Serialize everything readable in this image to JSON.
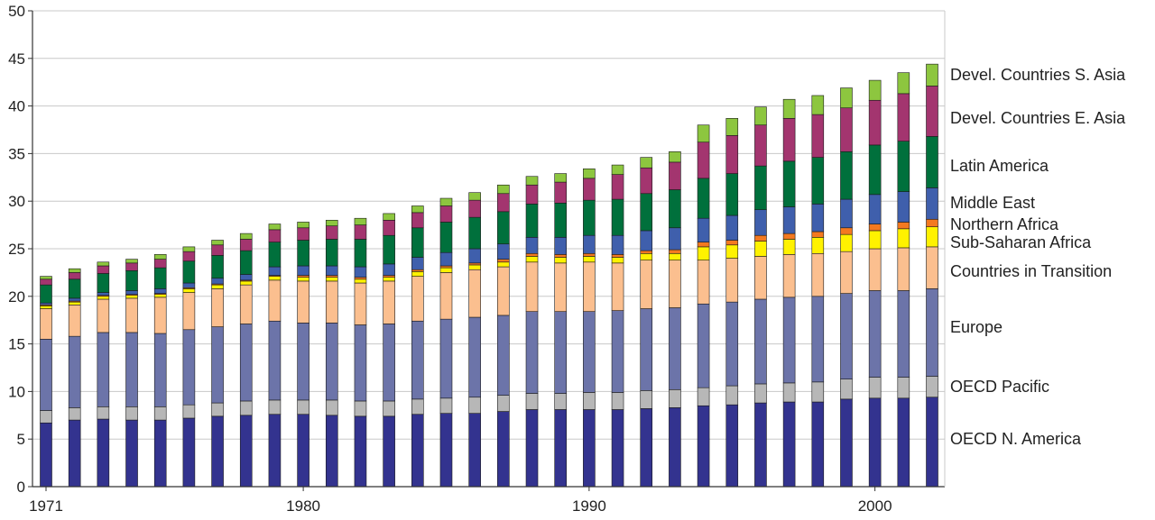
{
  "chart_data": {
    "type": "bar",
    "stacked": true,
    "title": "",
    "xlabel": "",
    "ylabel": "",
    "ylim": [
      0,
      50
    ],
    "yticks": [
      0,
      5,
      10,
      15,
      20,
      25,
      30,
      35,
      40,
      45,
      50
    ],
    "x_tick_labels": [
      "1971",
      "1980",
      "1990",
      "2000"
    ],
    "grid": true,
    "legend_position": "right",
    "categories": [
      1971,
      1972,
      1973,
      1974,
      1975,
      1976,
      1977,
      1978,
      1979,
      1980,
      1981,
      1982,
      1983,
      1984,
      1985,
      1986,
      1987,
      1988,
      1989,
      1990,
      1991,
      1992,
      1993,
      1994,
      1995,
      1996,
      1997,
      1998,
      1999,
      2000,
      2001,
      2002
    ],
    "series": [
      {
        "name": "OECD N. America",
        "color": "#33338f",
        "values": [
          6.7,
          7.0,
          7.1,
          7.0,
          7.0,
          7.2,
          7.4,
          7.5,
          7.6,
          7.6,
          7.5,
          7.4,
          7.4,
          7.6,
          7.7,
          7.7,
          7.9,
          8.1,
          8.1,
          8.1,
          8.1,
          8.2,
          8.3,
          8.5,
          8.6,
          8.8,
          8.9,
          8.9,
          9.2,
          9.3,
          9.3,
          9.4
        ]
      },
      {
        "name": "OECD Pacific",
        "color": "#b7b7b7",
        "values": [
          1.3,
          1.3,
          1.3,
          1.4,
          1.4,
          1.4,
          1.4,
          1.5,
          1.5,
          1.5,
          1.6,
          1.6,
          1.6,
          1.6,
          1.6,
          1.7,
          1.7,
          1.7,
          1.7,
          1.8,
          1.8,
          1.9,
          1.9,
          1.9,
          2.0,
          2.0,
          2.0,
          2.1,
          2.1,
          2.2,
          2.2,
          2.2
        ]
      },
      {
        "name": "Europe",
        "color": "#6c74a9",
        "values": [
          7.5,
          7.5,
          7.8,
          7.8,
          7.7,
          7.9,
          8.0,
          8.1,
          8.3,
          8.1,
          8.1,
          8.0,
          8.1,
          8.2,
          8.3,
          8.4,
          8.4,
          8.6,
          8.6,
          8.5,
          8.6,
          8.6,
          8.6,
          8.8,
          8.8,
          8.9,
          9.0,
          9.0,
          9.0,
          9.1,
          9.1,
          9.2
        ]
      },
      {
        "name": "Countries in Transition",
        "color": "#fbbf8f",
        "values": [
          3.2,
          3.3,
          3.5,
          3.6,
          3.8,
          3.9,
          4.0,
          4.1,
          4.3,
          4.4,
          4.4,
          4.4,
          4.5,
          4.7,
          4.9,
          5.0,
          5.1,
          5.2,
          5.1,
          5.2,
          5.0,
          5.1,
          5.0,
          4.6,
          4.6,
          4.5,
          4.5,
          4.5,
          4.4,
          4.4,
          4.5,
          4.4
        ]
      },
      {
        "name": "Sub-Saharan Africa",
        "color": "#fff200",
        "values": [
          0.3,
          0.3,
          0.3,
          0.3,
          0.3,
          0.4,
          0.4,
          0.4,
          0.4,
          0.4,
          0.4,
          0.4,
          0.4,
          0.5,
          0.5,
          0.5,
          0.5,
          0.6,
          0.6,
          0.6,
          0.6,
          0.7,
          0.7,
          1.4,
          1.4,
          1.6,
          1.6,
          1.7,
          1.8,
          1.9,
          2.0,
          2.1
        ]
      },
      {
        "name": "Northern Africa",
        "color": "#f47920",
        "values": [
          0.1,
          0.1,
          0.1,
          0.1,
          0.1,
          0.1,
          0.1,
          0.1,
          0.1,
          0.2,
          0.2,
          0.2,
          0.2,
          0.2,
          0.2,
          0.2,
          0.3,
          0.3,
          0.3,
          0.3,
          0.3,
          0.3,
          0.4,
          0.5,
          0.5,
          0.6,
          0.6,
          0.6,
          0.7,
          0.7,
          0.7,
          0.8
        ]
      },
      {
        "name": "Middle East",
        "color": "#3f5fac",
        "values": [
          0.2,
          0.3,
          0.3,
          0.4,
          0.5,
          0.5,
          0.6,
          0.6,
          0.9,
          1.0,
          1.0,
          1.1,
          1.2,
          1.3,
          1.4,
          1.5,
          1.6,
          1.7,
          1.8,
          1.9,
          2.0,
          2.1,
          2.3,
          2.5,
          2.6,
          2.7,
          2.8,
          2.9,
          3.0,
          3.1,
          3.2,
          3.3
        ]
      },
      {
        "name": "Latin America",
        "color": "#00703c",
        "values": [
          1.9,
          2.0,
          2.0,
          2.1,
          2.2,
          2.3,
          2.4,
          2.5,
          2.6,
          2.7,
          2.8,
          2.9,
          3.0,
          3.1,
          3.2,
          3.3,
          3.4,
          3.5,
          3.6,
          3.7,
          3.8,
          3.9,
          4.0,
          4.2,
          4.4,
          4.6,
          4.8,
          4.9,
          5.0,
          5.2,
          5.3,
          5.4
        ]
      },
      {
        "name": "Devel. Countries E. Asia",
        "color": "#a3356f",
        "values": [
          0.6,
          0.7,
          0.8,
          0.8,
          0.9,
          1.0,
          1.1,
          1.2,
          1.3,
          1.3,
          1.4,
          1.5,
          1.6,
          1.6,
          1.7,
          1.8,
          1.9,
          2.0,
          2.2,
          2.3,
          2.6,
          2.7,
          2.9,
          3.8,
          4.0,
          4.3,
          4.5,
          4.5,
          4.6,
          4.7,
          5.0,
          5.3
        ]
      },
      {
        "name": "Devel. Countries S. Asia",
        "color": "#8dc63f",
        "values": [
          0.3,
          0.4,
          0.4,
          0.4,
          0.5,
          0.5,
          0.5,
          0.6,
          0.6,
          0.6,
          0.6,
          0.7,
          0.7,
          0.7,
          0.8,
          0.8,
          0.9,
          0.9,
          0.9,
          1.0,
          1.0,
          1.1,
          1.1,
          1.8,
          1.8,
          1.9,
          2.0,
          2.0,
          2.1,
          2.1,
          2.2,
          2.3
        ]
      }
    ]
  }
}
